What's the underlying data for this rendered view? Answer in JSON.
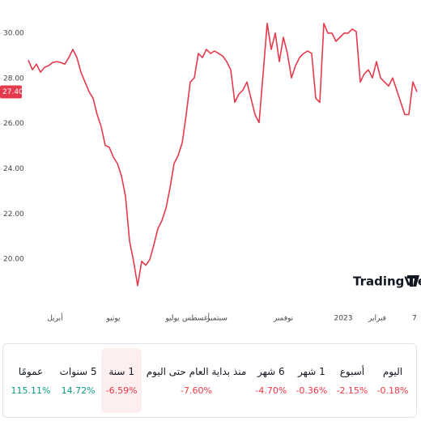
{
  "chart_data": {
    "type": "line",
    "values": [
      28.81,
      28.38,
      28.63,
      28.27,
      28.49,
      28.56,
      28.7,
      28.74,
      28.7,
      28.63,
      28.92,
      29.28,
      28.92,
      28.27,
      27.84,
      27.41,
      27.12,
      26.4,
      25.86,
      25.03,
      24.95,
      24.52,
      24.23,
      23.69,
      22.79,
      20.81,
      19.91,
      18.83,
      19.91,
      19.73,
      19.98,
      20.63,
      21.35,
      21.71,
      22.25,
      23.15,
      24.23,
      24.59,
      25.14,
      26.4,
      27.84,
      28.02,
      29.1,
      28.92,
      29.28,
      29.1,
      29.21,
      29.1,
      28.99,
      28.74,
      28.38,
      26.94,
      27.3,
      27.48,
      27.84,
      27.12,
      26.4,
      26.04,
      28.2,
      30.43,
      29.28,
      30.0,
      28.74,
      29.82,
      29.1,
      28.02,
      28.56,
      28.92,
      29.1,
      29.21,
      29.1,
      27.12,
      26.94,
      30.43,
      30.0,
      30.0,
      29.64,
      29.82,
      30.0,
      30.0,
      30.18,
      30.07,
      27.84,
      28.2,
      28.38,
      28.02,
      28.74,
      28.02,
      27.84,
      27.66,
      28.02,
      27.48,
      26.94,
      26.4,
      26.4,
      27.84,
      27.4
    ],
    "color": "#e5394c",
    "xlim": [
      0,
      96
    ],
    "xticks": [
      {
        "value": 6.6,
        "label": "أبريل"
      },
      {
        "value": 21,
        "label": "يونيو"
      },
      {
        "value": 35.6,
        "label": "يوليو"
      },
      {
        "value": 41.4,
        "label": "أغسطس"
      },
      {
        "value": 46.6,
        "label": "سبتمبر"
      },
      {
        "value": 63,
        "label": "نوفمبر"
      },
      {
        "value": 77.8,
        "label": "2023"
      },
      {
        "value": 86.2,
        "label": "فبراير"
      },
      {
        "value": 95.4,
        "label": "7"
      }
    ],
    "ylim": [
      18,
      30.75
    ],
    "yticks": [
      {
        "value": 20,
        "label": "20.00"
      },
      {
        "value": 22,
        "label": "22.00"
      },
      {
        "value": 24,
        "label": "24.00"
      },
      {
        "value": 26,
        "label": "26.00"
      },
      {
        "value": 28,
        "label": "28.00"
      },
      {
        "value": 30,
        "label": "30.00"
      }
    ],
    "price_marker": {
      "value": 27.4,
      "label": "27.40"
    },
    "watermark": "TradingView"
  },
  "performance": {
    "selected": 5,
    "items": [
      {
        "period": "اليوم",
        "change": "-0.18%",
        "color": "#f23645"
      },
      {
        "period": "أسبوع",
        "change": "-2.15%",
        "color": "#f23645"
      },
      {
        "period": "1 شهر",
        "change": "-0.36%",
        "color": "#f23645"
      },
      {
        "period": "6 شهر",
        "change": "-4.70%",
        "color": "#f23645"
      },
      {
        "period": "منذ بداية العام حتى اليوم",
        "change": "-7.60%",
        "color": "#f23645"
      },
      {
        "period": "1 سنة",
        "change": "-6.59%",
        "color": "#f23645"
      },
      {
        "period": "5 سنوات",
        "change": "14.72%",
        "color": "#089981"
      },
      {
        "period": "عمومًا",
        "change": "115.11%",
        "color": "#089981"
      }
    ]
  }
}
